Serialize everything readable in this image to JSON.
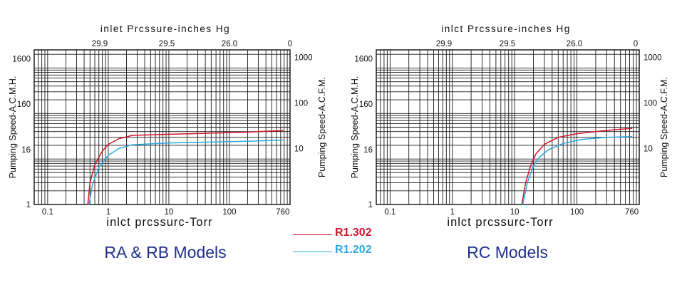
{
  "legend": [
    {
      "name": "R1.302",
      "color": "#d0142c"
    },
    {
      "name": "R1.202",
      "color": "#2aa8e0"
    }
  ],
  "chart_data": [
    {
      "type": "line",
      "caption": "RA & RB Models",
      "title": "",
      "top_xlabel": "inlet  Prcssure-inches Hg",
      "top_ticks": [
        "29.9",
        "29.5",
        "26.0",
        "0"
      ],
      "xlabel": "inlct prcssurc-Torr",
      "ylabel_left": "Pumping Speed-A.C.M.H.",
      "ylabel_right": "Pumping Speed-A.C.F.M.",
      "x_scale": "log",
      "y_scale": "log",
      "xlim": [
        0.06,
        1000
      ],
      "ylim": [
        1,
        2500
      ],
      "x_ticks": [
        "0.1",
        "1",
        "10",
        "100",
        "760"
      ],
      "y_ticks_left": [
        "1",
        "16",
        "160",
        "1600"
      ],
      "y_ticks_right": [
        "10",
        "100",
        "1000"
      ],
      "grid": true,
      "legend_position": "bottom-center",
      "series": [
        {
          "name": "R1.302",
          "color": "#d0142c",
          "x": [
            0.46,
            0.5,
            0.6,
            0.8,
            1.0,
            1.5,
            2.5,
            5,
            10,
            50,
            200,
            760
          ],
          "y": [
            1,
            3,
            7.5,
            15,
            21,
            28,
            33,
            34,
            35,
            37,
            39,
            42
          ]
        },
        {
          "name": "R1.202",
          "color": "#2aa8e0",
          "x": [
            0.48,
            0.55,
            0.7,
            1.0,
            1.5,
            2.5,
            5,
            10,
            50,
            200,
            760
          ],
          "y": [
            1,
            2.8,
            6.5,
            12,
            17,
            20.5,
            21.5,
            22.5,
            23.5,
            24.5,
            26
          ]
        }
      ]
    },
    {
      "type": "line",
      "caption": "RC Models",
      "title": "",
      "top_xlabel": "inlct  Prcssure-inches Hg",
      "top_ticks": [
        "29.9",
        "29.5",
        "26.0",
        "0"
      ],
      "xlabel": "inlct prcssurc-Torr",
      "ylabel_left": "Pumping Speed-A.C.M.H.",
      "ylabel_right": "Pumping Speed-A.C.F.M.",
      "x_scale": "log",
      "y_scale": "log",
      "xlim": [
        0.06,
        1000
      ],
      "ylim": [
        1,
        2500
      ],
      "x_ticks": [
        "0.1",
        "1",
        "10",
        "100",
        "760"
      ],
      "y_ticks_left": [
        "1",
        "16",
        "160",
        "1600"
      ],
      "y_ticks_right": [
        "10",
        "100",
        "1000"
      ],
      "grid": true,
      "legend_position": "bottom-center",
      "series": [
        {
          "name": "R1.302",
          "color": "#d0142c",
          "x": [
            13,
            15,
            18,
            22,
            30,
            50,
            100,
            200,
            400,
            760
          ],
          "y": [
            1,
            3,
            7,
            13,
            21,
            30,
            36,
            40,
            44,
            47
          ]
        },
        {
          "name": "R1.202",
          "color": "#2aa8e0",
          "x": [
            13.5,
            16,
            20,
            25,
            35,
            60,
            120,
            300,
            760
          ],
          "y": [
            1,
            3,
            7,
            11,
            16,
            22,
            27,
            30,
            31
          ]
        }
      ]
    }
  ]
}
